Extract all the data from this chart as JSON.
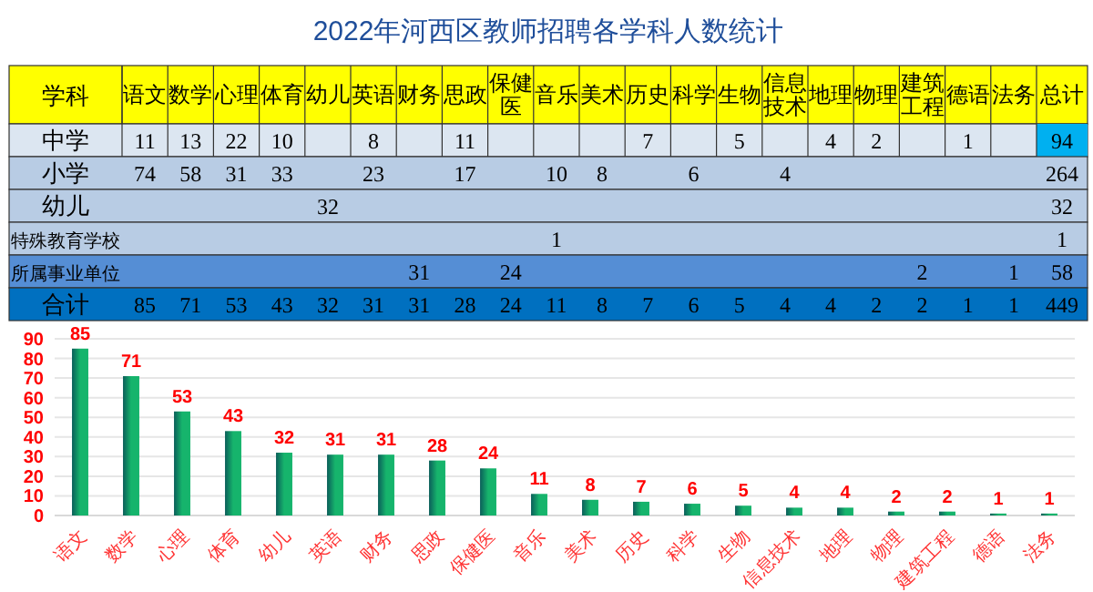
{
  "chart_data": [
    {
      "type": "heatmap",
      "title": "2022年河西区教师招聘各学科人数统计",
      "xlabel": "学科",
      "categories": [
        "语文",
        "数学",
        "心理",
        "体育",
        "幼儿",
        "英语",
        "财务",
        "思政",
        "保健医",
        "音乐",
        "美术",
        "历史",
        "科学",
        "生物",
        "信息技术",
        "地理",
        "物理",
        "建筑工程",
        "德语",
        "法务",
        "总计"
      ],
      "y_categories": [
        "中学",
        "小学",
        "幼儿",
        "特殊教育学校",
        "所属事业单位",
        "合计"
      ],
      "cells": [
        [
          11,
          13,
          22,
          10,
          null,
          8,
          null,
          11,
          null,
          null,
          null,
          7,
          null,
          5,
          null,
          4,
          2,
          null,
          1,
          null,
          94
        ],
        [
          74,
          58,
          31,
          33,
          null,
          23,
          null,
          17,
          null,
          10,
          8,
          null,
          6,
          null,
          4,
          null,
          null,
          null,
          null,
          null,
          264
        ],
        [
          null,
          null,
          null,
          null,
          32,
          null,
          null,
          null,
          null,
          null,
          null,
          null,
          null,
          null,
          null,
          null,
          null,
          null,
          null,
          null,
          32
        ],
        [
          null,
          null,
          null,
          null,
          null,
          null,
          null,
          null,
          null,
          1,
          null,
          null,
          null,
          null,
          null,
          null,
          null,
          null,
          null,
          null,
          1
        ],
        [
          null,
          null,
          null,
          null,
          null,
          null,
          31,
          null,
          24,
          null,
          null,
          null,
          null,
          null,
          null,
          null,
          null,
          2,
          null,
          1,
          58
        ],
        [
          85,
          71,
          53,
          43,
          32,
          31,
          31,
          28,
          24,
          11,
          8,
          7,
          6,
          5,
          4,
          4,
          2,
          2,
          1,
          1,
          449
        ]
      ],
      "data_labels": true
    },
    {
      "type": "bar",
      "categories": [
        "语文",
        "数学",
        "心理",
        "体育",
        "幼儿",
        "英语",
        "财务",
        "思政",
        "保健医",
        "音乐",
        "美术",
        "历史",
        "科学",
        "生物",
        "信息技术",
        "地理",
        "物理",
        "建筑工程",
        "德语",
        "法务"
      ],
      "values": [
        85,
        71,
        53,
        43,
        32,
        31,
        31,
        28,
        24,
        11,
        8,
        7,
        6,
        5,
        4,
        4,
        2,
        2,
        1,
        1
      ],
      "color": "#16b46c",
      "ylim": [
        0,
        90
      ],
      "yticks": [
        0,
        10,
        20,
        30,
        40,
        50,
        60,
        70,
        80,
        90
      ],
      "grid": "y",
      "data_labels": true
    }
  ]
}
